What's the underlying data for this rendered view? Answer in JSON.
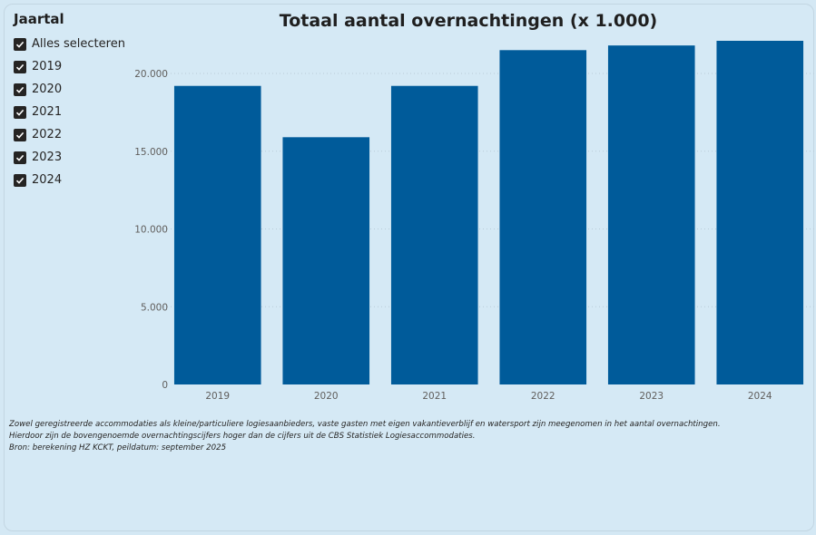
{
  "slicer": {
    "title": "Jaartal",
    "items": [
      {
        "label": "Alles selecteren",
        "checked": true
      },
      {
        "label": "2019",
        "checked": true
      },
      {
        "label": "2020",
        "checked": true
      },
      {
        "label": "2021",
        "checked": true
      },
      {
        "label": "2022",
        "checked": true
      },
      {
        "label": "2023",
        "checked": true
      },
      {
        "label": "2024",
        "checked": true
      }
    ]
  },
  "chart_data": {
    "type": "bar",
    "title": "Totaal aantal overnachtingen (x 1.000)",
    "categories": [
      "2019",
      "2020",
      "2021",
      "2022",
      "2023",
      "2024"
    ],
    "values": [
      19200,
      15900,
      19200,
      21500,
      21800,
      22100
    ],
    "ylim": [
      0,
      22100
    ],
    "yticks": [
      0,
      5000,
      10000,
      15000,
      20000
    ],
    "ytick_labels": [
      "0",
      "5.000",
      "10.000",
      "15.000",
      "20.000"
    ],
    "xlabel": "",
    "ylabel": "",
    "grid": true,
    "bar_color": "#005b9a",
    "grid_color": "#b9ccd8"
  },
  "notes": {
    "line1": "Zowel geregistreerde accommodaties als kleine/particuliere logiesaanbieders, vaste gasten met eigen vakantieverblijf en watersport zijn meegenomen in het aantal overnachtingen.",
    "line2": "Hierdoor zijn de bovengenoemde overnachtingscijfers hoger dan de cijfers uit de CBS Statistiek Logiesaccommodaties.",
    "line3": "Bron: berekening HZ KCKT, peildatum: september 2025"
  }
}
